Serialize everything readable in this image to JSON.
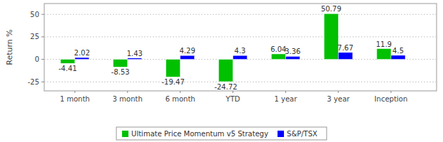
{
  "chart_data": {
    "type": "bar",
    "ylabel": "Return %",
    "categories": [
      "1 month",
      "3 month",
      "6 month",
      "YTD",
      "1 year",
      "3 year",
      "Inception"
    ],
    "series": [
      {
        "name": "Ultimate Price Momentum v5 Strategy",
        "color": "#00c000",
        "values": [
          -4.41,
          -8.53,
          -19.47,
          -24.72,
          6.04,
          50.79,
          11.9
        ]
      },
      {
        "name": "S&P/TSX",
        "color": "#0000ff",
        "values": [
          2.02,
          1.43,
          4.29,
          4.3,
          3.36,
          7.67,
          4.5
        ]
      }
    ],
    "ylim": [
      -35,
      62
    ],
    "yticks": [
      -25,
      0,
      25,
      50
    ],
    "grid": true,
    "data_labels": true,
    "legend": "bottom"
  }
}
